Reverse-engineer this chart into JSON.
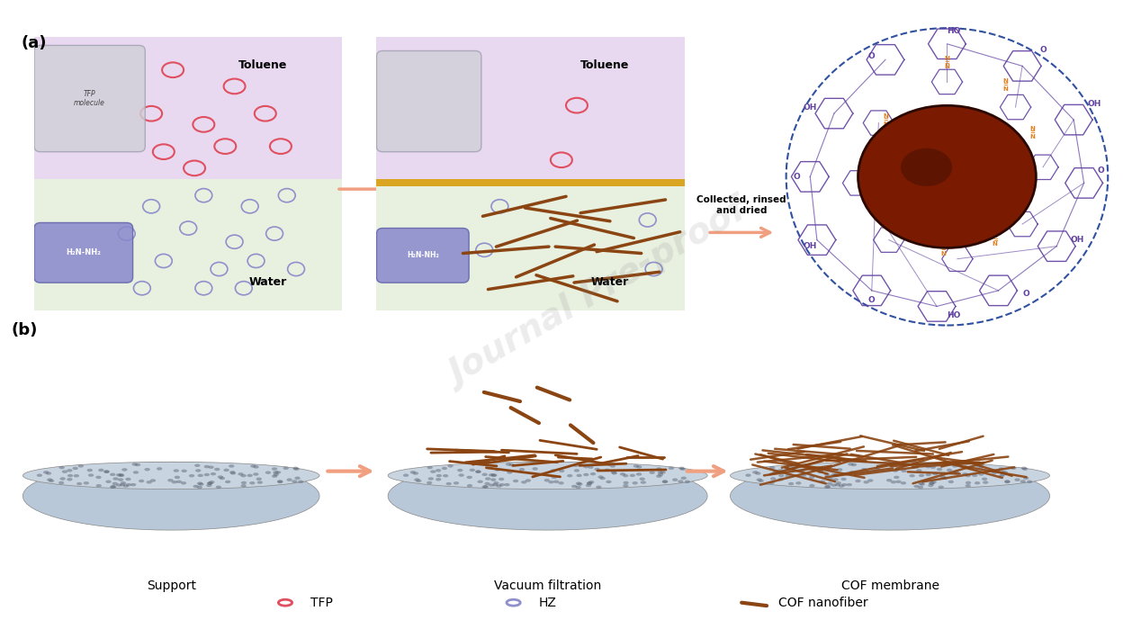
{
  "title_a": "(a)",
  "title_b": "(b)",
  "bg_color": "#ffffff",
  "toluene_color": "#e8d8f0",
  "water_color": "#e8f0e0",
  "tfp_color": "#e05060",
  "hz_color": "#9090cc",
  "nanofiber_color": "#8B4513",
  "interface_color": "#DAA520",
  "arrow_color": "#f0a080",
  "dashed_circle_color": "#3050a0",
  "cof_structure_color": "#6040a0",
  "cof_orange_color": "#e08020",
  "brown_disk_color": "#7a1a00",
  "label_toluene": "Toluene",
  "label_water": "Water",
  "label_collected": "Collected, rinsed\nand dried",
  "label_support": "Support",
  "label_vacuum": "Vacuum filtration",
  "label_cof_membrane": "COF membrane",
  "legend_tfp": "TFP",
  "legend_hz": "HZ",
  "legend_nanofiber": "COF nanofiber"
}
